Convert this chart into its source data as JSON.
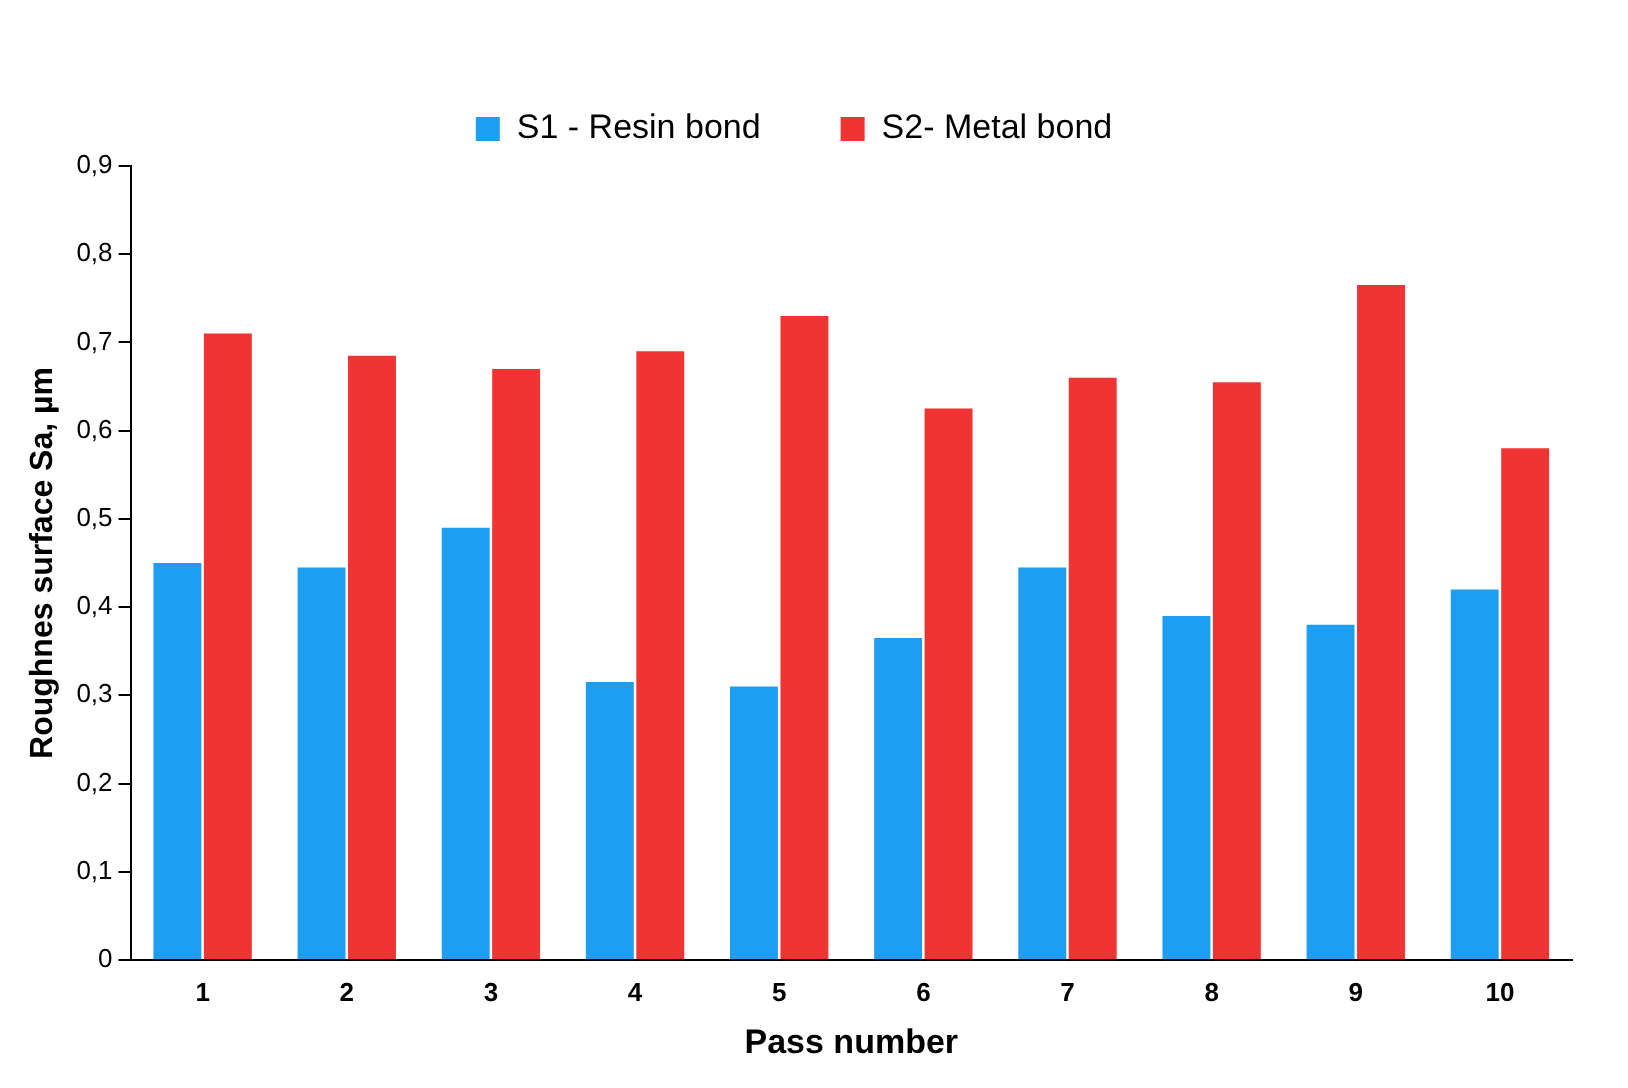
{
  "chart_data": {
    "type": "bar",
    "xlabel": "Pass number",
    "ylabel": "Roughnes surface Sa, µm",
    "categories": [
      "1",
      "2",
      "3",
      "4",
      "5",
      "6",
      "7",
      "8",
      "9",
      "10"
    ],
    "series": [
      {
        "name": "S1 - Resin bond",
        "color": "#1e9ef0",
        "values": [
          0.45,
          0.445,
          0.49,
          0.315,
          0.31,
          0.365,
          0.445,
          0.39,
          0.38,
          0.42
        ]
      },
      {
        "name": "S2- Metal bond",
        "color": "#f03434",
        "values": [
          0.71,
          0.685,
          0.67,
          0.69,
          0.73,
          0.625,
          0.66,
          0.655,
          0.765,
          0.58
        ]
      }
    ],
    "ylim": [
      0,
      0.9
    ],
    "yticks": [
      0,
      {
        "value": 0.1,
        "label": "0,1"
      },
      {
        "value": 0.2,
        "label": "0,2"
      },
      {
        "value": 0.3,
        "label": "0,3"
      },
      {
        "value": 0.4,
        "label": "0,4"
      },
      {
        "value": 0.5,
        "label": "0,5"
      },
      {
        "value": 0.6,
        "label": "0,6"
      },
      {
        "value": 0.7,
        "label": "0,7"
      },
      {
        "value": 0.8,
        "label": "0,8"
      },
      {
        "value": 0.9,
        "label": "0,9"
      }
    ],
    "grid": false,
    "legend": "top"
  }
}
